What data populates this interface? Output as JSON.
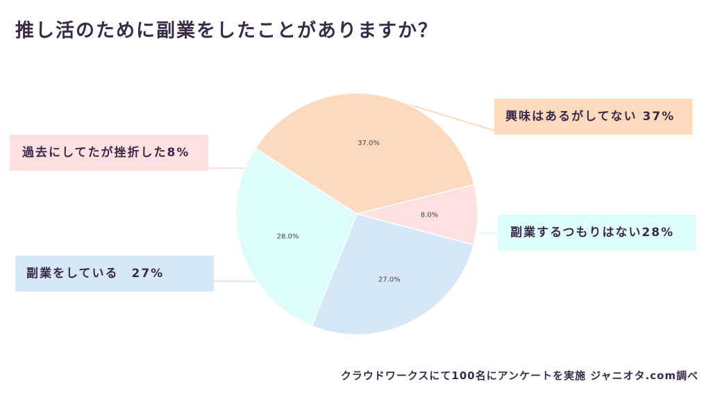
{
  "title": "推し活のために副業をしたことがありますか？",
  "source": "クラウドワークスにて100名にアンケートを実施 ジャニオタ.com調べ",
  "chart_data": {
    "type": "pie",
    "title": "推し活のために副業をしたことがありますか？",
    "slices": [
      {
        "label": "興味はあるがしてない 37%",
        "value": 37.0,
        "pct_label": "37.0%",
        "color": "#fdd9bd"
      },
      {
        "label": "過去にしてたが挫折した8%",
        "value": 8.0,
        "pct_label": "8.0%",
        "color": "#fde0e0"
      },
      {
        "label": "副業をしている　27%",
        "value": 27.0,
        "pct_label": "27.0%",
        "color": "#d6e8f7"
      },
      {
        "label": "副業するつもりはない28%",
        "value": 28.0,
        "pct_label": "28.0%",
        "color": "#ddfcfc"
      }
    ]
  }
}
